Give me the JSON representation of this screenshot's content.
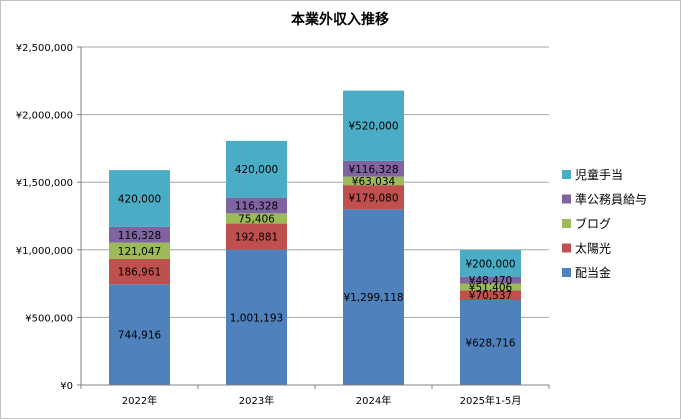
{
  "chart_data": {
    "type": "bar",
    "stacked": true,
    "title": "本業外収入推移",
    "xlabel": "",
    "ylabel": "",
    "ylim": [
      0,
      2500000
    ],
    "y_tick_step": 500000,
    "y_tick_labels": [
      "¥0",
      "¥500,000",
      "¥1,000,000",
      "¥1,500,000",
      "¥2,000,000",
      "¥2,500,000"
    ],
    "categories": [
      "2022年",
      "2023年",
      "2024年",
      "2025年1-5月"
    ],
    "grid": true,
    "legend_position": "right",
    "series": [
      {
        "name": "配当金",
        "color": "#4f81bd",
        "values": [
          744916,
          1001193,
          1299118,
          628716
        ],
        "labels": [
          "744,916",
          "1,001,193",
          "¥1,299,118",
          "¥628,716"
        ]
      },
      {
        "name": "太陽光",
        "color": "#c0504d",
        "values": [
          186961,
          192881,
          179080,
          70537
        ],
        "labels": [
          "186,961",
          "192,881",
          "¥179,080",
          "¥70,537"
        ]
      },
      {
        "name": "ブログ",
        "color": "#9bbb59",
        "values": [
          121047,
          75406,
          63034,
          51406
        ],
        "labels": [
          "121,047",
          "75,406",
          "¥63,034",
          "¥51,406"
        ]
      },
      {
        "name": "準公務員給与",
        "color": "#8064a2",
        "values": [
          116328,
          116328,
          116328,
          48470
        ],
        "labels": [
          "116,328",
          "116,328",
          "¥116,328",
          "¥48,470"
        ]
      },
      {
        "name": "児童手当",
        "color": "#4bacc6",
        "values": [
          420000,
          420000,
          520000,
          200000
        ],
        "labels": [
          "420,000",
          "420,000",
          "¥520,000",
          "¥200,000"
        ]
      }
    ]
  }
}
